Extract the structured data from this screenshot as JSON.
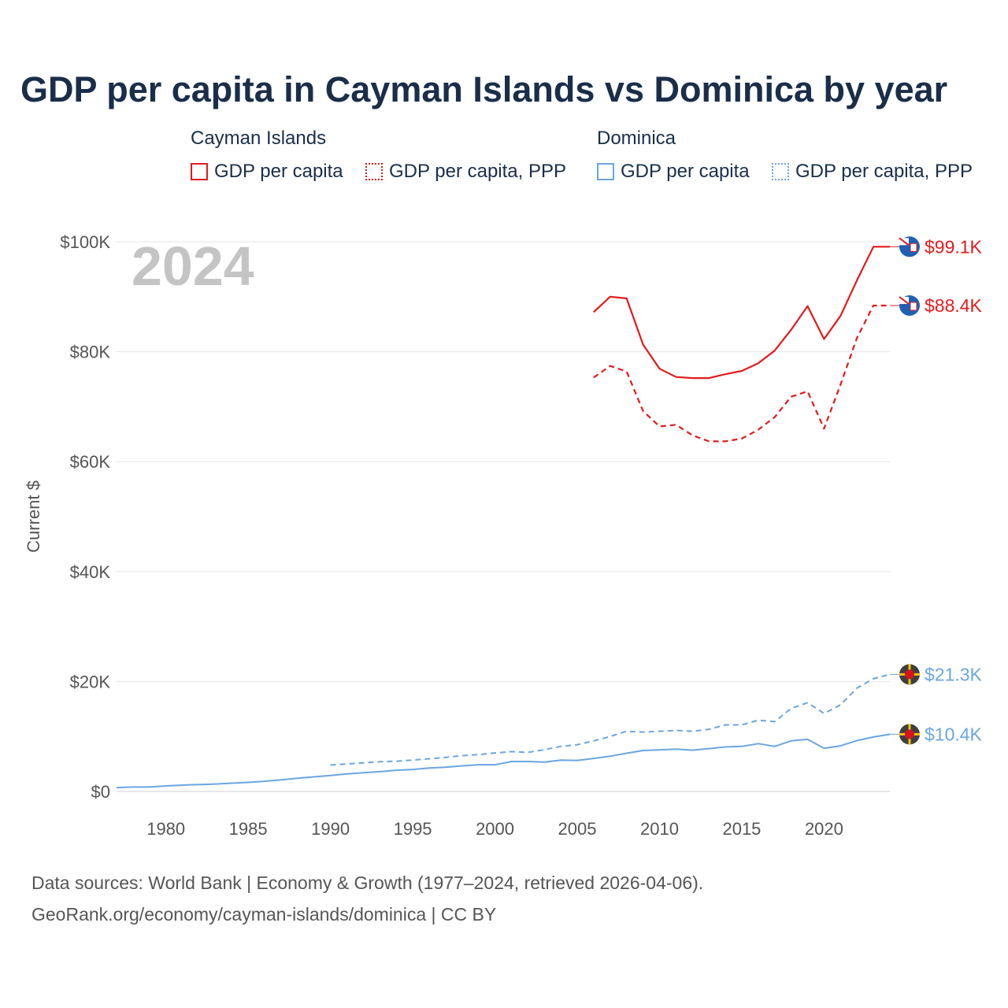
{
  "title": "GDP per capita in Cayman Islands vs Dominica by year",
  "legend": {
    "groups": [
      {
        "name": "Cayman Islands",
        "color": "#e31a1c",
        "items": [
          {
            "label": "GDP per capita",
            "style": "solid"
          },
          {
            "label": "GDP per capita, PPP",
            "style": "dotted"
          }
        ]
      },
      {
        "name": "Dominica",
        "color": "#6aa6e0",
        "items": [
          {
            "label": "GDP per capita",
            "style": "solid"
          },
          {
            "label": "GDP per capita, PPP",
            "style": "dotted"
          }
        ]
      }
    ]
  },
  "year_watermark": "2024",
  "footer": {
    "line1": "Data sources: World Bank | Economy & Growth (1977–2024, retrieved 2026-04-06).",
    "line2": "GeoRank.org/economy/cayman-islands/dominica | CC BY"
  },
  "chart_data": {
    "type": "line",
    "title": "GDP per capita in Cayman Islands vs Dominica by year",
    "xlabel": "",
    "ylabel": "Current $",
    "xlim": [
      1977,
      2024
    ],
    "ylim": [
      0,
      100000
    ],
    "x_ticks": [
      1980,
      1985,
      1990,
      1995,
      2000,
      2005,
      2010,
      2015,
      2020
    ],
    "y_ticks": [
      0,
      20000,
      40000,
      60000,
      80000,
      100000
    ],
    "y_tick_labels": [
      "$0",
      "$20K",
      "$40K",
      "$60K",
      "$80K",
      "$100K"
    ],
    "grid": true,
    "series": [
      {
        "name": "Cayman Islands — GDP per capita",
        "color": "#e31a1c",
        "dash": "solid",
        "end_label": "$99.1K",
        "x": [
          2006,
          2007,
          2008,
          2009,
          2010,
          2011,
          2012,
          2013,
          2014,
          2015,
          2016,
          2017,
          2018,
          2019,
          2020,
          2021,
          2022,
          2023,
          2024
        ],
        "values": [
          87200,
          90000,
          89700,
          81300,
          76900,
          75400,
          75200,
          75200,
          75900,
          76500,
          77900,
          80200,
          84000,
          88300,
          82300,
          86500,
          93000,
          99100,
          99100
        ]
      },
      {
        "name": "Cayman Islands — GDP per capita, PPP",
        "color": "#e31a1c",
        "dash": "dashed",
        "end_label": "$88.4K",
        "x": [
          2006,
          2007,
          2008,
          2009,
          2010,
          2011,
          2012,
          2013,
          2014,
          2015,
          2016,
          2017,
          2018,
          2019,
          2020,
          2021,
          2022,
          2023,
          2024
        ],
        "values": [
          75300,
          77400,
          76400,
          69200,
          66400,
          66700,
          64800,
          63700,
          63700,
          64200,
          65800,
          68100,
          71800,
          72800,
          66000,
          74000,
          82500,
          88400,
          88400
        ]
      },
      {
        "name": "Dominica — GDP per capita",
        "color": "#6aa6e0",
        "dash": "solid",
        "end_label": "$10.4K",
        "x": [
          1977,
          1978,
          1979,
          1980,
          1981,
          1982,
          1983,
          1984,
          1985,
          1986,
          1987,
          1988,
          1989,
          1990,
          1991,
          1992,
          1993,
          1994,
          1995,
          1996,
          1997,
          1998,
          1999,
          2000,
          2001,
          2002,
          2003,
          2004,
          2005,
          2006,
          2007,
          2008,
          2009,
          2010,
          2011,
          2012,
          2013,
          2014,
          2015,
          2016,
          2017,
          2018,
          2019,
          2020,
          2021,
          2022,
          2023,
          2024
        ],
        "values": [
          700,
          800,
          800,
          1000,
          1150,
          1250,
          1350,
          1500,
          1650,
          1850,
          2100,
          2400,
          2650,
          2900,
          3200,
          3400,
          3600,
          3850,
          4000,
          4250,
          4400,
          4650,
          4850,
          4850,
          5450,
          5450,
          5350,
          5700,
          5650,
          6000,
          6400,
          6950,
          7450,
          7550,
          7700,
          7500,
          7800,
          8100,
          8200,
          8700,
          8200,
          9200,
          9500,
          7850,
          8300,
          9250,
          9900,
          10400
        ]
      },
      {
        "name": "Dominica — GDP per capita, PPP",
        "color": "#6aa6e0",
        "dash": "dashed",
        "end_label": "$21.3K",
        "x": [
          1990,
          1991,
          1992,
          1993,
          1994,
          1995,
          1996,
          1997,
          1998,
          1999,
          2000,
          2001,
          2002,
          2003,
          2004,
          2005,
          2006,
          2007,
          2008,
          2009,
          2010,
          2011,
          2012,
          2013,
          2014,
          2015,
          2016,
          2017,
          2018,
          2019,
          2020,
          2021,
          2022,
          2023,
          2024
        ],
        "values": [
          4800,
          5000,
          5200,
          5400,
          5500,
          5700,
          5950,
          6200,
          6500,
          6700,
          7000,
          7250,
          7100,
          7600,
          8200,
          8500,
          9200,
          10000,
          10950,
          10800,
          10950,
          11100,
          10950,
          11300,
          12100,
          12100,
          12950,
          12700,
          15100,
          16150,
          14200,
          15750,
          18800,
          20500,
          21300
        ]
      }
    ]
  }
}
